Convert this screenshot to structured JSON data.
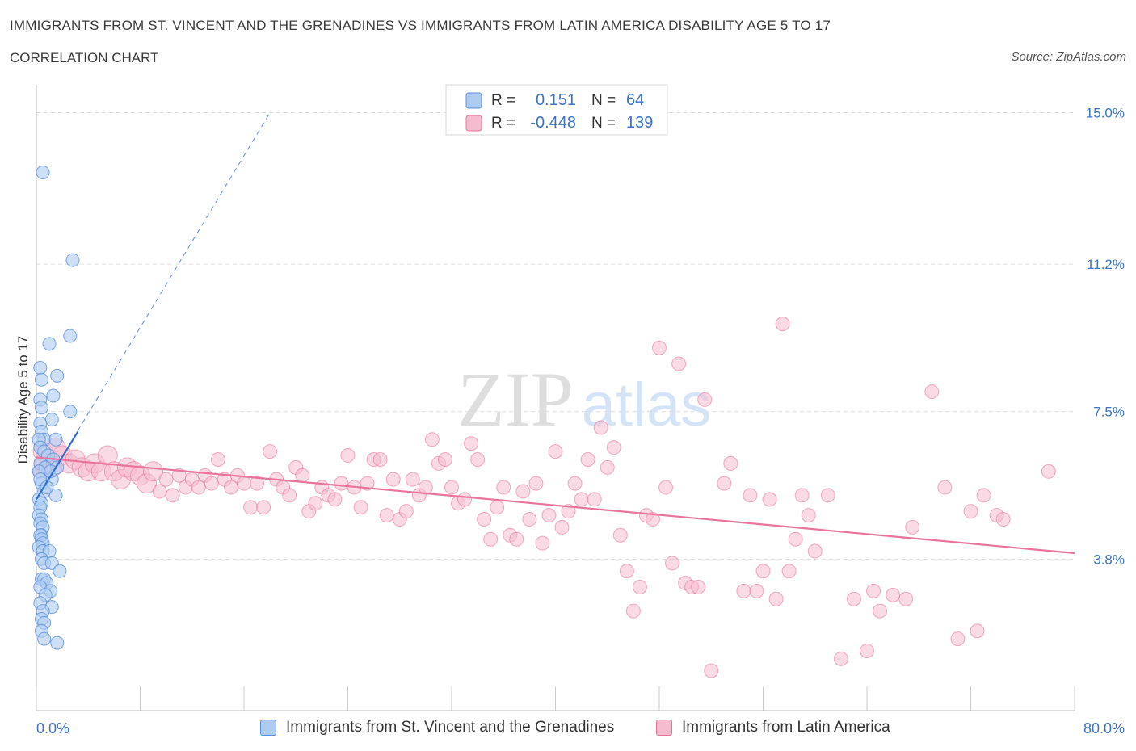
{
  "header": {
    "title": "IMMIGRANTS FROM ST. VINCENT AND THE GRENADINES VS IMMIGRANTS FROM LATIN AMERICA DISABILITY AGE 5 TO 17",
    "subtitle": "CORRELATION CHART",
    "source": "Source: ZipAtlas.com"
  },
  "watermark": {
    "zip": "ZIP",
    "atlas": "atlas"
  },
  "colors": {
    "blue": "#5b8fd9",
    "blue_fill": "#aecbf2",
    "pink": "#e8749c",
    "pink_fill": "#f5bcd0",
    "axis_text": "#3b73c8",
    "grid": "#dddddd"
  },
  "legend_top": {
    "rows": [
      {
        "r_label": "R =",
        "r_value": "0.151",
        "n_label": "N =",
        "n_value": "64"
      },
      {
        "r_label": "R =",
        "r_value": "-0.448",
        "n_label": "N =",
        "n_value": "139"
      }
    ]
  },
  "legend_bottom": {
    "items": [
      {
        "label": "Immigrants from St. Vincent and the Grenadines"
      },
      {
        "label": "Immigrants from Latin America"
      }
    ]
  },
  "chart_data": {
    "type": "scatter",
    "ylabel": "Disability Age 5 to 17",
    "xlim": [
      0,
      80
    ],
    "ylim": [
      0,
      15.8
    ],
    "x_tick_labels": [
      "0.0%",
      "80.0%"
    ],
    "y_ticks": [
      3.8,
      7.5,
      11.2,
      15.0
    ],
    "y_tick_labels": [
      "3.8%",
      "7.5%",
      "11.2%",
      "15.0%"
    ],
    "grid": true,
    "legend_placement": "top-center",
    "series": [
      {
        "name": "Immigrants from St. Vincent and the Grenadines",
        "color": "#5b8fd9",
        "trend": {
          "x": [
            0.0,
            3.2
          ],
          "y": [
            5.3,
            7.0
          ],
          "extended_to": [
            18.0,
            15.0
          ]
        },
        "points": [
          [
            0.5,
            13.5
          ],
          [
            2.8,
            11.3
          ],
          [
            2.6,
            9.4
          ],
          [
            1.0,
            9.2
          ],
          [
            1.6,
            8.4
          ],
          [
            0.3,
            8.6
          ],
          [
            0.4,
            8.3
          ],
          [
            1.3,
            7.9
          ],
          [
            0.3,
            7.8
          ],
          [
            0.4,
            7.6
          ],
          [
            2.6,
            7.5
          ],
          [
            1.2,
            7.3
          ],
          [
            0.3,
            7.2
          ],
          [
            0.4,
            7.0
          ],
          [
            0.6,
            6.8
          ],
          [
            1.5,
            6.8
          ],
          [
            0.2,
            6.8
          ],
          [
            0.3,
            6.6
          ],
          [
            0.6,
            6.5
          ],
          [
            0.9,
            6.4
          ],
          [
            1.3,
            6.3
          ],
          [
            0.3,
            6.2
          ],
          [
            0.7,
            6.1
          ],
          [
            1.6,
            6.1
          ],
          [
            0.2,
            6.0
          ],
          [
            1.2,
            5.8
          ],
          [
            0.4,
            5.7
          ],
          [
            0.6,
            5.5
          ],
          [
            1.5,
            5.4
          ],
          [
            0.2,
            5.3
          ],
          [
            0.4,
            5.2
          ],
          [
            0.3,
            5.1
          ],
          [
            0.2,
            4.9
          ],
          [
            0.4,
            4.8
          ],
          [
            0.3,
            4.7
          ],
          [
            0.5,
            4.6
          ],
          [
            0.4,
            4.4
          ],
          [
            0.3,
            4.4
          ],
          [
            0.4,
            4.3
          ],
          [
            0.5,
            4.2
          ],
          [
            0.2,
            4.1
          ],
          [
            0.5,
            4.0
          ],
          [
            1.0,
            4.0
          ],
          [
            0.4,
            3.8
          ],
          [
            0.6,
            3.7
          ],
          [
            1.2,
            3.7
          ],
          [
            1.8,
            3.5
          ],
          [
            0.4,
            3.3
          ],
          [
            0.6,
            3.3
          ],
          [
            0.8,
            3.2
          ],
          [
            0.3,
            3.1
          ],
          [
            1.1,
            3.0
          ],
          [
            0.7,
            2.9
          ],
          [
            0.3,
            2.7
          ],
          [
            1.2,
            2.6
          ],
          [
            0.5,
            2.5
          ],
          [
            0.4,
            2.3
          ],
          [
            0.6,
            2.2
          ],
          [
            0.4,
            2.0
          ],
          [
            0.6,
            1.8
          ],
          [
            1.6,
            1.7
          ],
          [
            0.3,
            5.8
          ],
          [
            0.8,
            5.6
          ],
          [
            1.1,
            6.0
          ]
        ]
      },
      {
        "name": "Immigrants from Latin America",
        "color": "#e8749c",
        "trend": {
          "x": [
            0.0,
            80.0
          ],
          "y": [
            6.35,
            3.95
          ]
        },
        "points": [
          [
            0.5,
            6.5
          ],
          [
            1.0,
            6.3
          ],
          [
            1.5,
            6.6
          ],
          [
            2.0,
            6.4
          ],
          [
            0.6,
            6.2
          ],
          [
            1.2,
            6.1
          ],
          [
            2.5,
            6.2
          ],
          [
            3.0,
            6.3
          ],
          [
            3.5,
            6.1
          ],
          [
            4.0,
            6.0
          ],
          [
            4.5,
            6.2
          ],
          [
            5.0,
            6.0
          ],
          [
            5.5,
            6.4
          ],
          [
            6.0,
            6.0
          ],
          [
            6.5,
            5.8
          ],
          [
            7.0,
            6.1
          ],
          [
            7.5,
            6.0
          ],
          [
            8.0,
            5.9
          ],
          [
            8.5,
            5.7
          ],
          [
            9.0,
            6.0
          ],
          [
            9.5,
            5.5
          ],
          [
            10.0,
            5.8
          ],
          [
            10.5,
            5.4
          ],
          [
            11.0,
            5.9
          ],
          [
            11.5,
            5.6
          ],
          [
            12.0,
            5.8
          ],
          [
            12.5,
            5.6
          ],
          [
            13.0,
            5.9
          ],
          [
            13.5,
            5.7
          ],
          [
            14.0,
            6.3
          ],
          [
            14.5,
            5.8
          ],
          [
            15.0,
            5.6
          ],
          [
            15.5,
            5.9
          ],
          [
            16.0,
            5.7
          ],
          [
            16.5,
            5.1
          ],
          [
            17.0,
            5.7
          ],
          [
            17.5,
            5.1
          ],
          [
            18.0,
            6.5
          ],
          [
            18.5,
            5.8
          ],
          [
            19.0,
            5.6
          ],
          [
            19.5,
            5.4
          ],
          [
            20.0,
            6.1
          ],
          [
            20.5,
            5.9
          ],
          [
            21.0,
            5.0
          ],
          [
            21.5,
            5.2
          ],
          [
            22.0,
            5.6
          ],
          [
            22.5,
            5.4
          ],
          [
            23.0,
            5.3
          ],
          [
            23.5,
            5.7
          ],
          [
            24.0,
            6.4
          ],
          [
            24.5,
            5.6
          ],
          [
            25.0,
            5.1
          ],
          [
            25.5,
            5.7
          ],
          [
            26.0,
            6.3
          ],
          [
            26.5,
            6.3
          ],
          [
            27.0,
            4.9
          ],
          [
            27.5,
            5.8
          ],
          [
            28.0,
            4.8
          ],
          [
            28.5,
            5.0
          ],
          [
            29.0,
            5.8
          ],
          [
            29.5,
            5.4
          ],
          [
            30.0,
            5.6
          ],
          [
            30.5,
            6.8
          ],
          [
            31.0,
            6.2
          ],
          [
            31.5,
            6.3
          ],
          [
            32.0,
            5.6
          ],
          [
            32.5,
            5.2
          ],
          [
            33.0,
            5.3
          ],
          [
            33.5,
            6.7
          ],
          [
            34.0,
            6.3
          ],
          [
            34.5,
            4.8
          ],
          [
            35.0,
            4.3
          ],
          [
            35.5,
            5.1
          ],
          [
            36.0,
            5.6
          ],
          [
            36.5,
            4.4
          ],
          [
            37.0,
            4.3
          ],
          [
            37.5,
            5.5
          ],
          [
            38.0,
            4.8
          ],
          [
            38.5,
            5.7
          ],
          [
            39.0,
            4.2
          ],
          [
            39.5,
            4.9
          ],
          [
            40.0,
            6.5
          ],
          [
            40.5,
            4.6
          ],
          [
            41.0,
            5.0
          ],
          [
            41.5,
            5.7
          ],
          [
            42.0,
            5.3
          ],
          [
            42.5,
            6.3
          ],
          [
            43.0,
            5.3
          ],
          [
            43.5,
            7.1
          ],
          [
            44.0,
            6.1
          ],
          [
            44.5,
            6.6
          ],
          [
            45.0,
            4.4
          ],
          [
            45.5,
            3.5
          ],
          [
            46.0,
            2.5
          ],
          [
            46.5,
            3.1
          ],
          [
            47.0,
            4.9
          ],
          [
            47.5,
            4.8
          ],
          [
            48.0,
            9.1
          ],
          [
            48.5,
            5.6
          ],
          [
            49.0,
            3.7
          ],
          [
            49.5,
            8.7
          ],
          [
            50.0,
            3.2
          ],
          [
            50.5,
            3.1
          ],
          [
            51.0,
            3.1
          ],
          [
            51.5,
            7.8
          ],
          [
            52.0,
            1.0
          ],
          [
            53.0,
            5.7
          ],
          [
            53.5,
            6.2
          ],
          [
            54.5,
            3.0
          ],
          [
            55.0,
            5.4
          ],
          [
            55.5,
            3.0
          ],
          [
            56.0,
            3.5
          ],
          [
            56.5,
            5.3
          ],
          [
            57.0,
            2.8
          ],
          [
            57.5,
            9.7
          ],
          [
            58.0,
            3.5
          ],
          [
            58.5,
            4.3
          ],
          [
            59.0,
            5.4
          ],
          [
            59.5,
            4.9
          ],
          [
            60.0,
            4.0
          ],
          [
            61.0,
            5.4
          ],
          [
            62.0,
            1.3
          ],
          [
            63.0,
            2.8
          ],
          [
            64.0,
            1.5
          ],
          [
            64.5,
            3.0
          ],
          [
            65.0,
            2.5
          ],
          [
            66.0,
            2.9
          ],
          [
            67.0,
            2.8
          ],
          [
            67.5,
            4.6
          ],
          [
            69.0,
            8.0
          ],
          [
            70.0,
            5.6
          ],
          [
            71.0,
            1.8
          ],
          [
            72.0,
            5.0
          ],
          [
            72.5,
            2.0
          ],
          [
            73.0,
            5.4
          ],
          [
            74.0,
            4.9
          ],
          [
            74.5,
            4.8
          ],
          [
            78.0,
            6.0
          ],
          [
            0.3,
            6.0
          ]
        ]
      }
    ]
  }
}
